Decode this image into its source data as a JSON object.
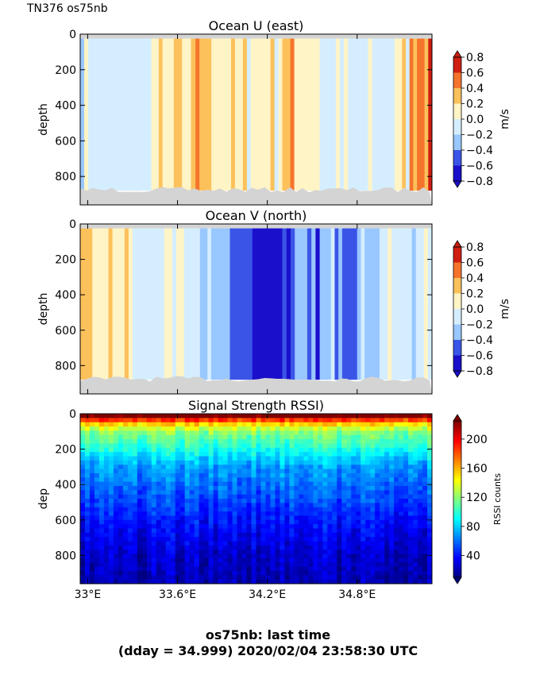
{
  "header": {
    "cruise_label": "TN376 os75nb"
  },
  "footer": {
    "line1": "os75nb: last time",
    "line2": "(dday = 34.999) 2020/02/04 23:58:30 UTC"
  },
  "chart_data": [
    {
      "type": "heatmap",
      "title": "Ocean U (east)",
      "xlabel": "",
      "ylabel": "depth",
      "xlim": [
        32.95,
        35.3
      ],
      "ylim": [
        960,
        0
      ],
      "x_ticks": [
        {
          "v": 33.0,
          "label": "33°E"
        },
        {
          "v": 33.6,
          "label": "33.6°E"
        },
        {
          "v": 34.2,
          "label": "34.2°E"
        },
        {
          "v": 34.8,
          "label": "34.8°E"
        }
      ],
      "y_ticks": [
        0,
        200,
        400,
        600,
        800
      ],
      "colorbar": {
        "label": "m/s",
        "levels": [
          -0.8,
          -0.6,
          -0.4,
          -0.2,
          0.0,
          0.2,
          0.4,
          0.6,
          0.8
        ],
        "tick_labels": [
          "−0.8",
          "−0.6",
          "−0.4",
          "−0.2",
          "0.0",
          "0.2",
          "0.4",
          "0.6",
          "0.8"
        ],
        "colors": [
          "#1a10cc",
          "#3b54e8",
          "#99c7ff",
          "#d5eeff",
          "#fff4c6",
          "#fdc15b",
          "#f5742c",
          "#cf1e12"
        ]
      },
      "profile_columns": [
        {
          "x0": 32.95,
          "x1": 33.4,
          "class": 3
        },
        {
          "x0": 33.4,
          "x1": 33.6,
          "class": 4
        },
        {
          "x0": 33.6,
          "x1": 33.63,
          "class": 5
        },
        {
          "x0": 33.63,
          "x1": 33.72,
          "class": 4
        },
        {
          "x0": 33.72,
          "x1": 33.8,
          "class": 5
        },
        {
          "x0": 33.8,
          "x1": 34.3,
          "class": 4
        },
        {
          "x0": 34.3,
          "x1": 34.38,
          "class": 5
        },
        {
          "x0": 34.38,
          "x1": 34.55,
          "class": 4
        },
        {
          "x0": 34.55,
          "x1": 34.9,
          "class": 3
        },
        {
          "x0": 34.9,
          "x1": 35.05,
          "class": 3
        },
        {
          "x0": 35.05,
          "x1": 35.15,
          "class": 4
        },
        {
          "x0": 35.15,
          "x1": 35.3,
          "class": 6
        }
      ],
      "seafloor_depth_m": 880,
      "mask_color": "#d4d4d4"
    },
    {
      "type": "heatmap",
      "title": "Ocean V (north)",
      "xlabel": "",
      "ylabel": "depth",
      "xlim": [
        32.95,
        35.3
      ],
      "ylim": [
        960,
        0
      ],
      "x_ticks": [
        {
          "v": 33.0,
          "label": "33°E"
        },
        {
          "v": 33.6,
          "label": "33.6°E"
        },
        {
          "v": 34.2,
          "label": "34.2°E"
        },
        {
          "v": 34.8,
          "label": "34.8°E"
        }
      ],
      "y_ticks": [
        0,
        200,
        400,
        600,
        800
      ],
      "colorbar": {
        "label": "m/s",
        "levels": [
          -0.8,
          -0.6,
          -0.4,
          -0.2,
          0.0,
          0.2,
          0.4,
          0.6,
          0.8
        ],
        "tick_labels": [
          "−0.8",
          "−0.6",
          "−0.4",
          "−0.2",
          "0.0",
          "0.2",
          "0.4",
          "0.6",
          "0.8"
        ],
        "colors": [
          "#1a10cc",
          "#3b54e8",
          "#99c7ff",
          "#d5eeff",
          "#fff4c6",
          "#fdc15b",
          "#f5742c",
          "#cf1e12"
        ]
      },
      "profile_columns": [
        {
          "x0": 32.95,
          "x1": 33.3,
          "class": 4
        },
        {
          "x0": 33.3,
          "x1": 33.75,
          "class": 3
        },
        {
          "x0": 33.75,
          "x1": 33.95,
          "class": 2
        },
        {
          "x0": 33.95,
          "x1": 34.1,
          "class": 1
        },
        {
          "x0": 34.1,
          "x1": 34.3,
          "class": 0
        },
        {
          "x0": 34.3,
          "x1": 34.55,
          "class": 1
        },
        {
          "x0": 34.55,
          "x1": 34.75,
          "class": 2
        },
        {
          "x0": 34.75,
          "x1": 34.95,
          "class": 2
        },
        {
          "x0": 34.95,
          "x1": 35.3,
          "class": 3
        }
      ],
      "seafloor_depth_m": 880,
      "mask_color": "#d4d4d4"
    },
    {
      "type": "heatmap",
      "title": "Signal Strength RSSI)",
      "xlabel": "",
      "ylabel": "dep",
      "xlim": [
        32.95,
        35.3
      ],
      "ylim": [
        960,
        0
      ],
      "x_ticks": [
        {
          "v": 33.0,
          "label": "33°E"
        },
        {
          "v": 33.6,
          "label": "33.6°E"
        },
        {
          "v": 34.2,
          "label": "34.2°E"
        },
        {
          "v": 34.8,
          "label": "34.8°E"
        }
      ],
      "y_ticks": [
        0,
        200,
        400,
        600,
        800
      ],
      "colorbar": {
        "label": "RSSI counts",
        "range": [
          10,
          225
        ],
        "ticks": [
          40,
          80,
          120,
          160,
          200
        ],
        "tick_labels": [
          "40",
          "80",
          "120",
          "160",
          "200"
        ],
        "colormap": "jet"
      },
      "rssi_profile": [
        {
          "depth": 20,
          "value": 215
        },
        {
          "depth": 50,
          "value": 160
        },
        {
          "depth": 100,
          "value": 120
        },
        {
          "depth": 200,
          "value": 95
        },
        {
          "depth": 300,
          "value": 70
        },
        {
          "depth": 450,
          "value": 55
        },
        {
          "depth": 600,
          "value": 40
        },
        {
          "depth": 800,
          "value": 25
        },
        {
          "depth": 960,
          "value": 20
        }
      ]
    }
  ]
}
